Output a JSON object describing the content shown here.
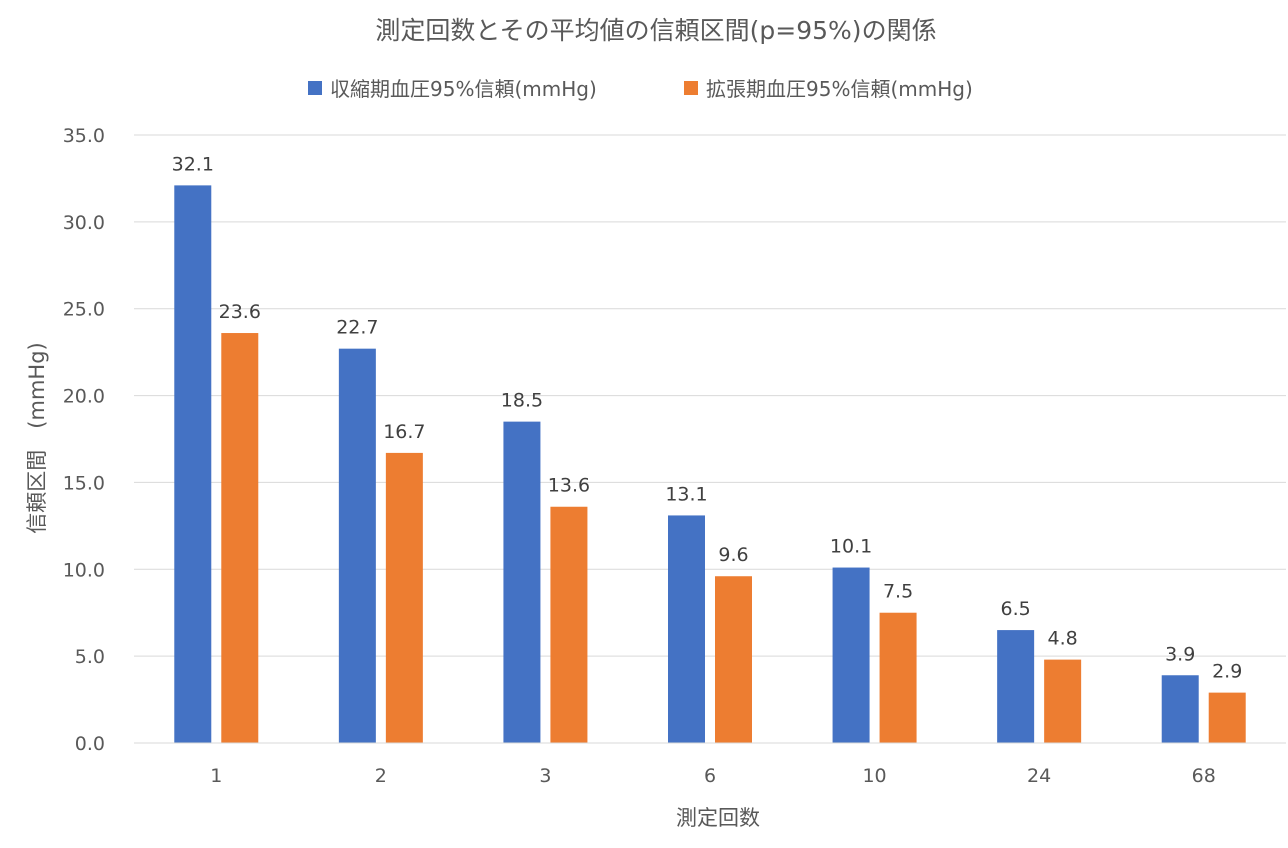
{
  "chart_data": {
    "type": "bar",
    "title": "測定回数とその平均値の信頼区間(p=95%)の関係",
    "xlabel": "測定回数",
    "ylabel": "信頼区間　(mmHg)",
    "categories": [
      "1",
      "2",
      "3",
      "6",
      "10",
      "24",
      "68"
    ],
    "series": [
      {
        "name": "収縮期血圧95%信頼(mmHg)",
        "color": "#4472C4",
        "values": [
          32.1,
          22.7,
          18.5,
          13.1,
          10.1,
          6.5,
          3.9
        ],
        "labels": [
          "32.1",
          "22.7",
          "18.5",
          "13.1",
          "10.1",
          "6.5",
          "3.9"
        ]
      },
      {
        "name": "拡張期血圧95%信頼(mmHg)",
        "color": "#ED7D31",
        "values": [
          23.6,
          16.7,
          13.6,
          9.6,
          7.5,
          4.8,
          2.9
        ],
        "labels": [
          "23.6",
          "16.7",
          "13.6",
          "9.6",
          "7.5",
          "4.8",
          "2.9"
        ]
      }
    ],
    "ylim": [
      0,
      35
    ],
    "yticks": [
      "0.0",
      "5.0",
      "10.0",
      "15.0",
      "20.0",
      "25.0",
      "30.0",
      "35.0"
    ],
    "grid": true,
    "legend_position": "top"
  }
}
